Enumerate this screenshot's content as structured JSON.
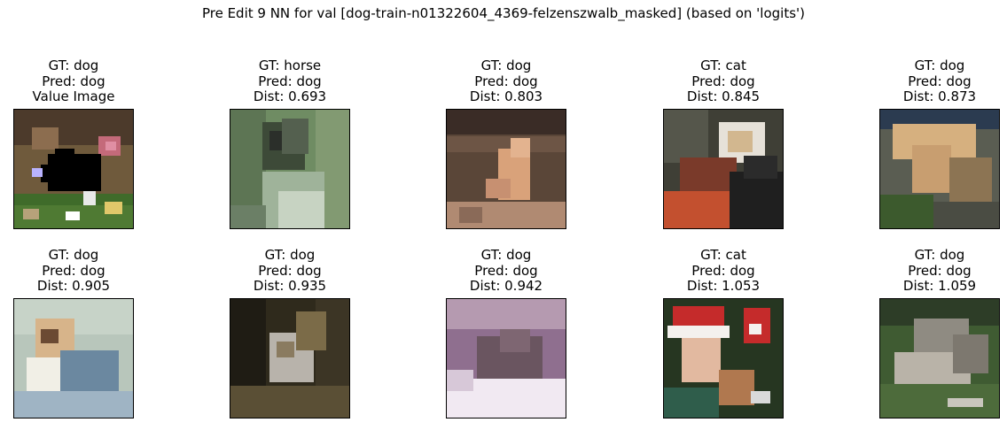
{
  "figure": {
    "title": "Pre Edit 9 NN for val [dog-train-n01322604_4369-felzenszwalb_masked] (based on 'logits')"
  },
  "rows": [
    {
      "cells": [
        {
          "gt": "GT: dog",
          "pred": "Pred: dog",
          "extra": "Value Image",
          "subject": "dog with black masked region among flowers",
          "colors": {
            "bg": "#6f5a3c",
            "a": "#3f6b2a",
            "b": "#000000",
            "c": "#c46a7a"
          }
        },
        {
          "gt": "GT: horse",
          "pred": "Pred: dog",
          "extra": "Dist: 0.693",
          "subject": "dark animal on grassy path",
          "colors": {
            "bg": "#6f8c63",
            "a": "#3d4a38",
            "b": "#9fb39a",
            "c": "#2b2f2a"
          }
        },
        {
          "gt": "GT: dog",
          "pred": "Pred: dog",
          "extra": "Dist: 0.803",
          "subject": "light orange dog sitting",
          "colors": {
            "bg": "#5a4638",
            "a": "#d9a27a",
            "b": "#3a2c26",
            "c": "#b08a72"
          }
        },
        {
          "gt": "GT: cat",
          "pred": "Pred: dog",
          "extra": "Dist: 0.845",
          "subject": "cat with person in red",
          "colors": {
            "bg": "#3f3f36",
            "a": "#c3502f",
            "b": "#e6e1d8",
            "c": "#1f1f1f"
          }
        },
        {
          "gt": "GT: dog",
          "pred": "Pred: dog",
          "extra": "Dist: 0.873",
          "subject": "tan chihuahua",
          "colors": {
            "bg": "#5a5d52",
            "a": "#d6b07f",
            "b": "#2b3b50",
            "c": "#3c5a2d"
          }
        }
      ]
    },
    {
      "cells": [
        {
          "gt": "GT: dog",
          "pred": "Pred: dog",
          "extra": "Dist: 0.905",
          "subject": "small dog lying on blanket",
          "colors": {
            "bg": "#b8c6bb",
            "a": "#d7b48a",
            "b": "#6b88a0",
            "c": "#f1efe6"
          }
        },
        {
          "gt": "GT: dog",
          "pred": "Pred: dog",
          "extra": "Dist: 0.935",
          "subject": "dog in dark forest",
          "colors": {
            "bg": "#2f2a1c",
            "a": "#b8b3ab",
            "b": "#5a4f35",
            "c": "#7b6b48"
          }
        },
        {
          "gt": "GT: dog",
          "pred": "Pred: dog",
          "extra": "Dist: 0.942",
          "subject": "wolf in purple haze on snow",
          "colors": {
            "bg": "#8f6f8f",
            "a": "#6a5560",
            "b": "#f1e9f2",
            "c": "#b59ab0"
          }
        },
        {
          "gt": "GT: cat",
          "pred": "Pred: dog",
          "extra": "Dist: 1.053",
          "subject": "person with santa hat and cat",
          "colors": {
            "bg": "#263621",
            "a": "#c52b2b",
            "b": "#f4f1ee",
            "c": "#b0784f"
          }
        },
        {
          "gt": "GT: dog",
          "pred": "Pred: dog",
          "extra": "Dist: 1.059",
          "subject": "grey dogs on grass",
          "colors": {
            "bg": "#3f5b32",
            "a": "#8f8b82",
            "b": "#b9b3a8",
            "c": "#2d3d27"
          }
        }
      ]
    }
  ]
}
